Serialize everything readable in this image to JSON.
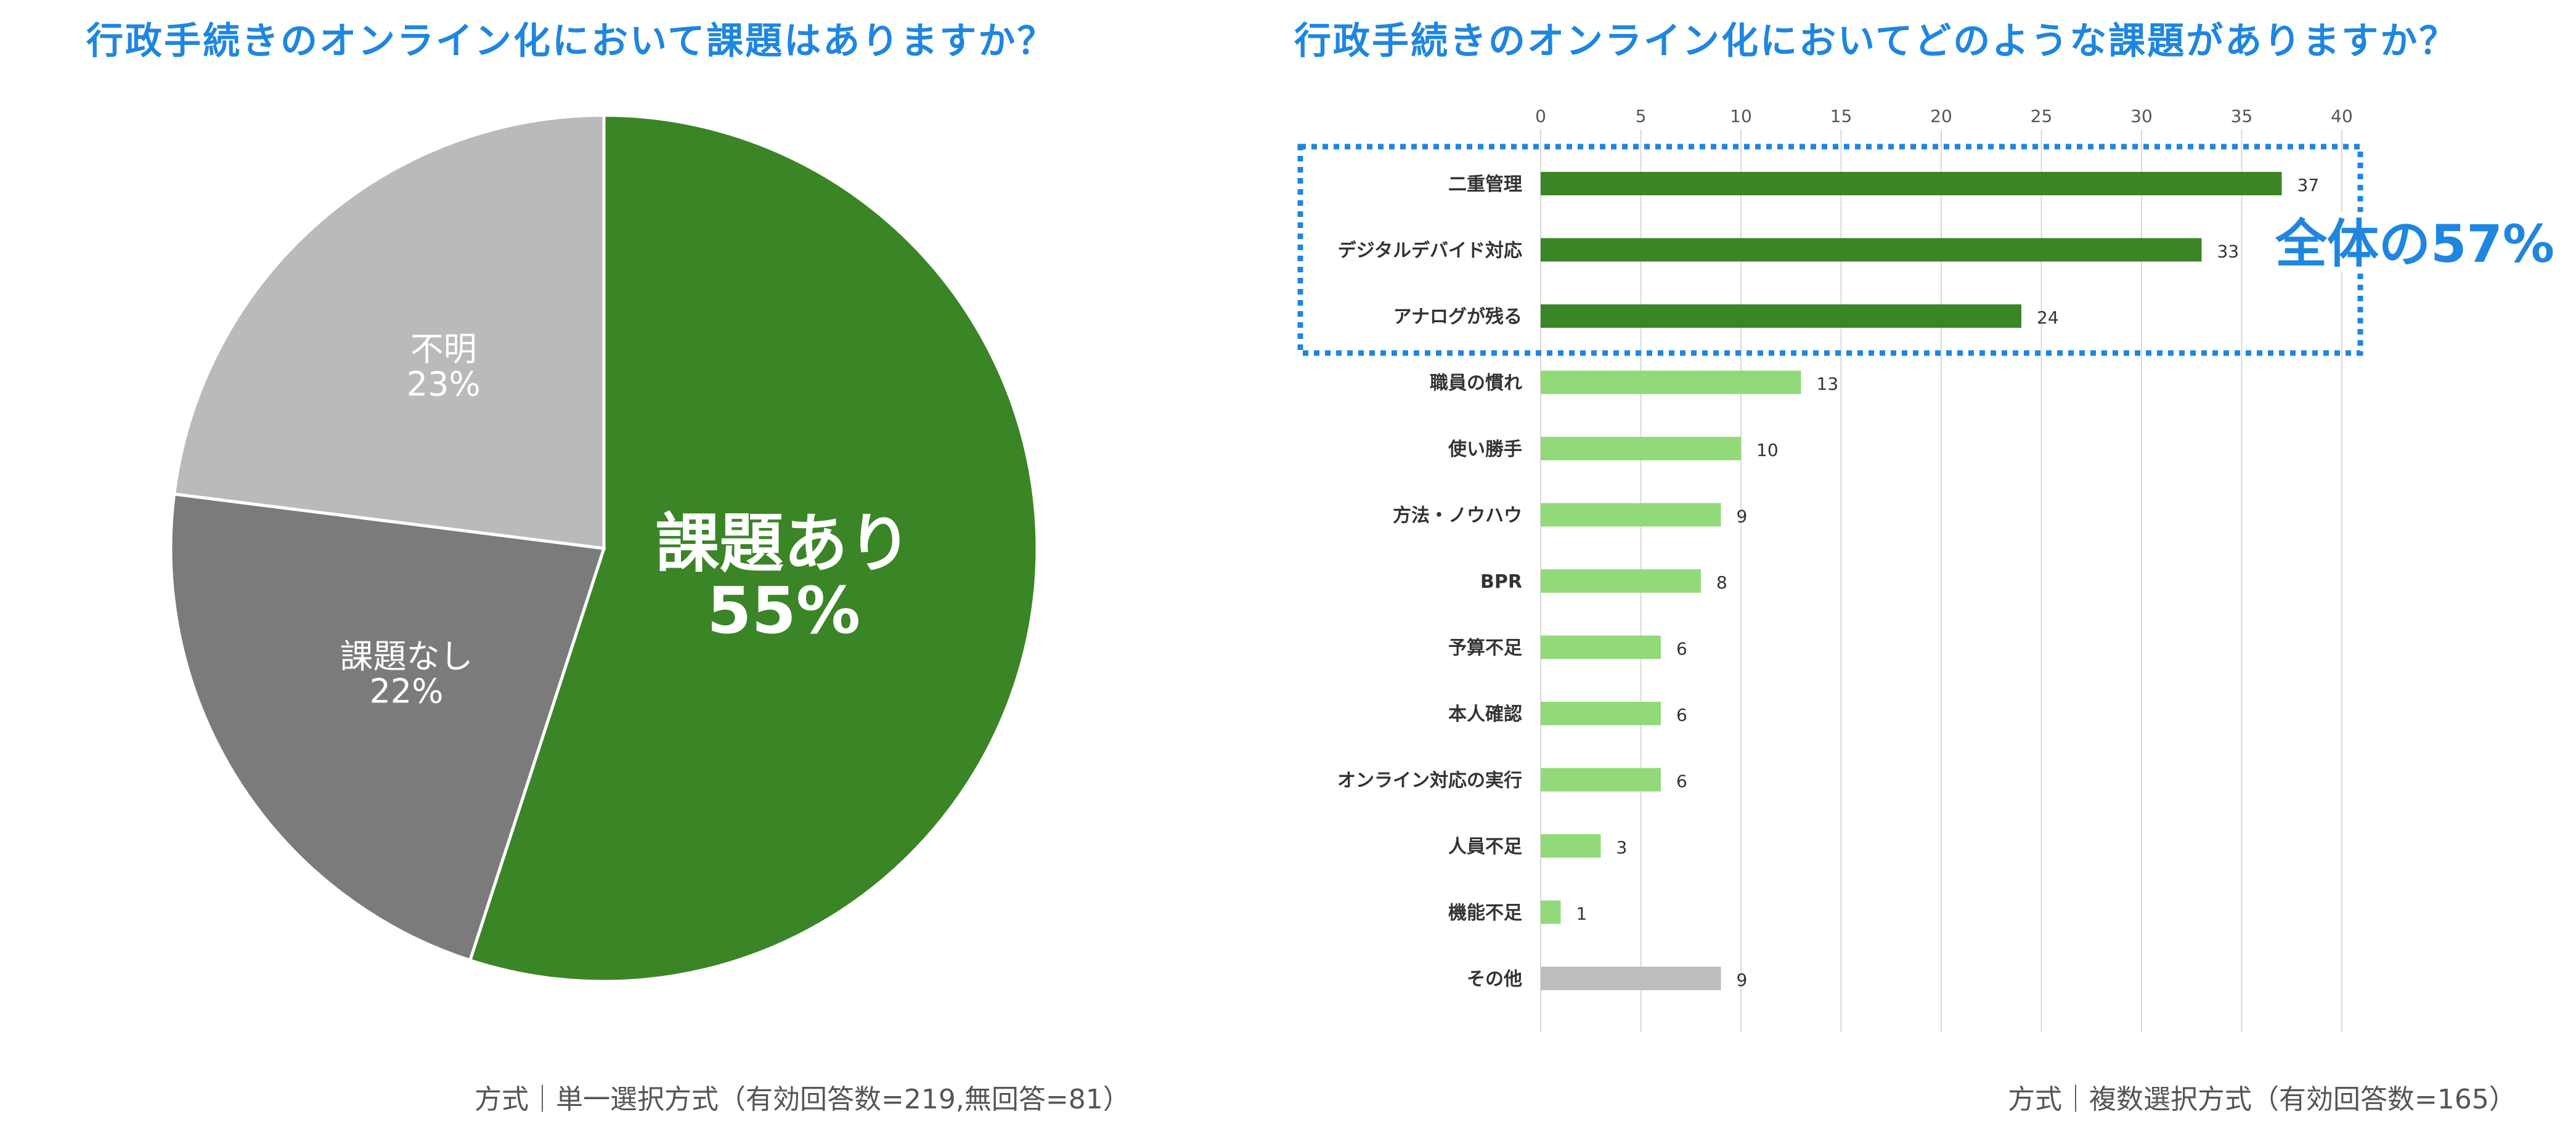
{
  "left_panel": {
    "title": "行政手続きのオンライン化において課題はありますか？",
    "footnote": "方式｜単一選択方式（有効回答数=219,無回答=81）"
  },
  "right_panel": {
    "title": "行政手続きのオンライン化においてどのような課題がありますか？",
    "footnote": "方式｜複数選択方式（有効回答数=165）",
    "callout": "全体の57%"
  },
  "chart_data": [
    {
      "type": "pie",
      "title": "行政手続きのオンライン化において課題はありますか？",
      "slices": [
        {
          "label": "課題あり",
          "value": 55,
          "value_label": "55%",
          "color": "#3a8526"
        },
        {
          "label": "課題なし",
          "value": 22,
          "value_label": "22%",
          "color": "#7b7b7b"
        },
        {
          "label": "不明",
          "value": 23,
          "value_label": "23%",
          "color": "#bababa"
        }
      ]
    },
    {
      "type": "bar",
      "orientation": "horizontal",
      "title": "行政手続きのオンライン化においてどのような課題がありますか？",
      "xlim": [
        0,
        40
      ],
      "xticks": [
        0,
        5,
        10,
        15,
        20,
        25,
        30,
        35,
        40
      ],
      "grid": true,
      "categories": [
        "二重管理",
        "デジタルデバイド対応",
        "アナログが残る",
        "職員の慣れ",
        "使い勝手",
        "方法・ノウハウ",
        "BPR",
        "予算不足",
        "本人確認",
        "オンライン対応の実行",
        "人員不足",
        "機能不足",
        "その他"
      ],
      "values": [
        37,
        33,
        24,
        13,
        10,
        9,
        8,
        6,
        6,
        6,
        3,
        1,
        9
      ],
      "bar_colors": [
        "#3a8526",
        "#3a8526",
        "#3a8526",
        "#92d97a",
        "#92d97a",
        "#92d97a",
        "#92d97a",
        "#92d97a",
        "#92d97a",
        "#92d97a",
        "#92d97a",
        "#92d97a",
        "#bdbdbd"
      ],
      "highlight_color": "#1f86e0"
    }
  ]
}
